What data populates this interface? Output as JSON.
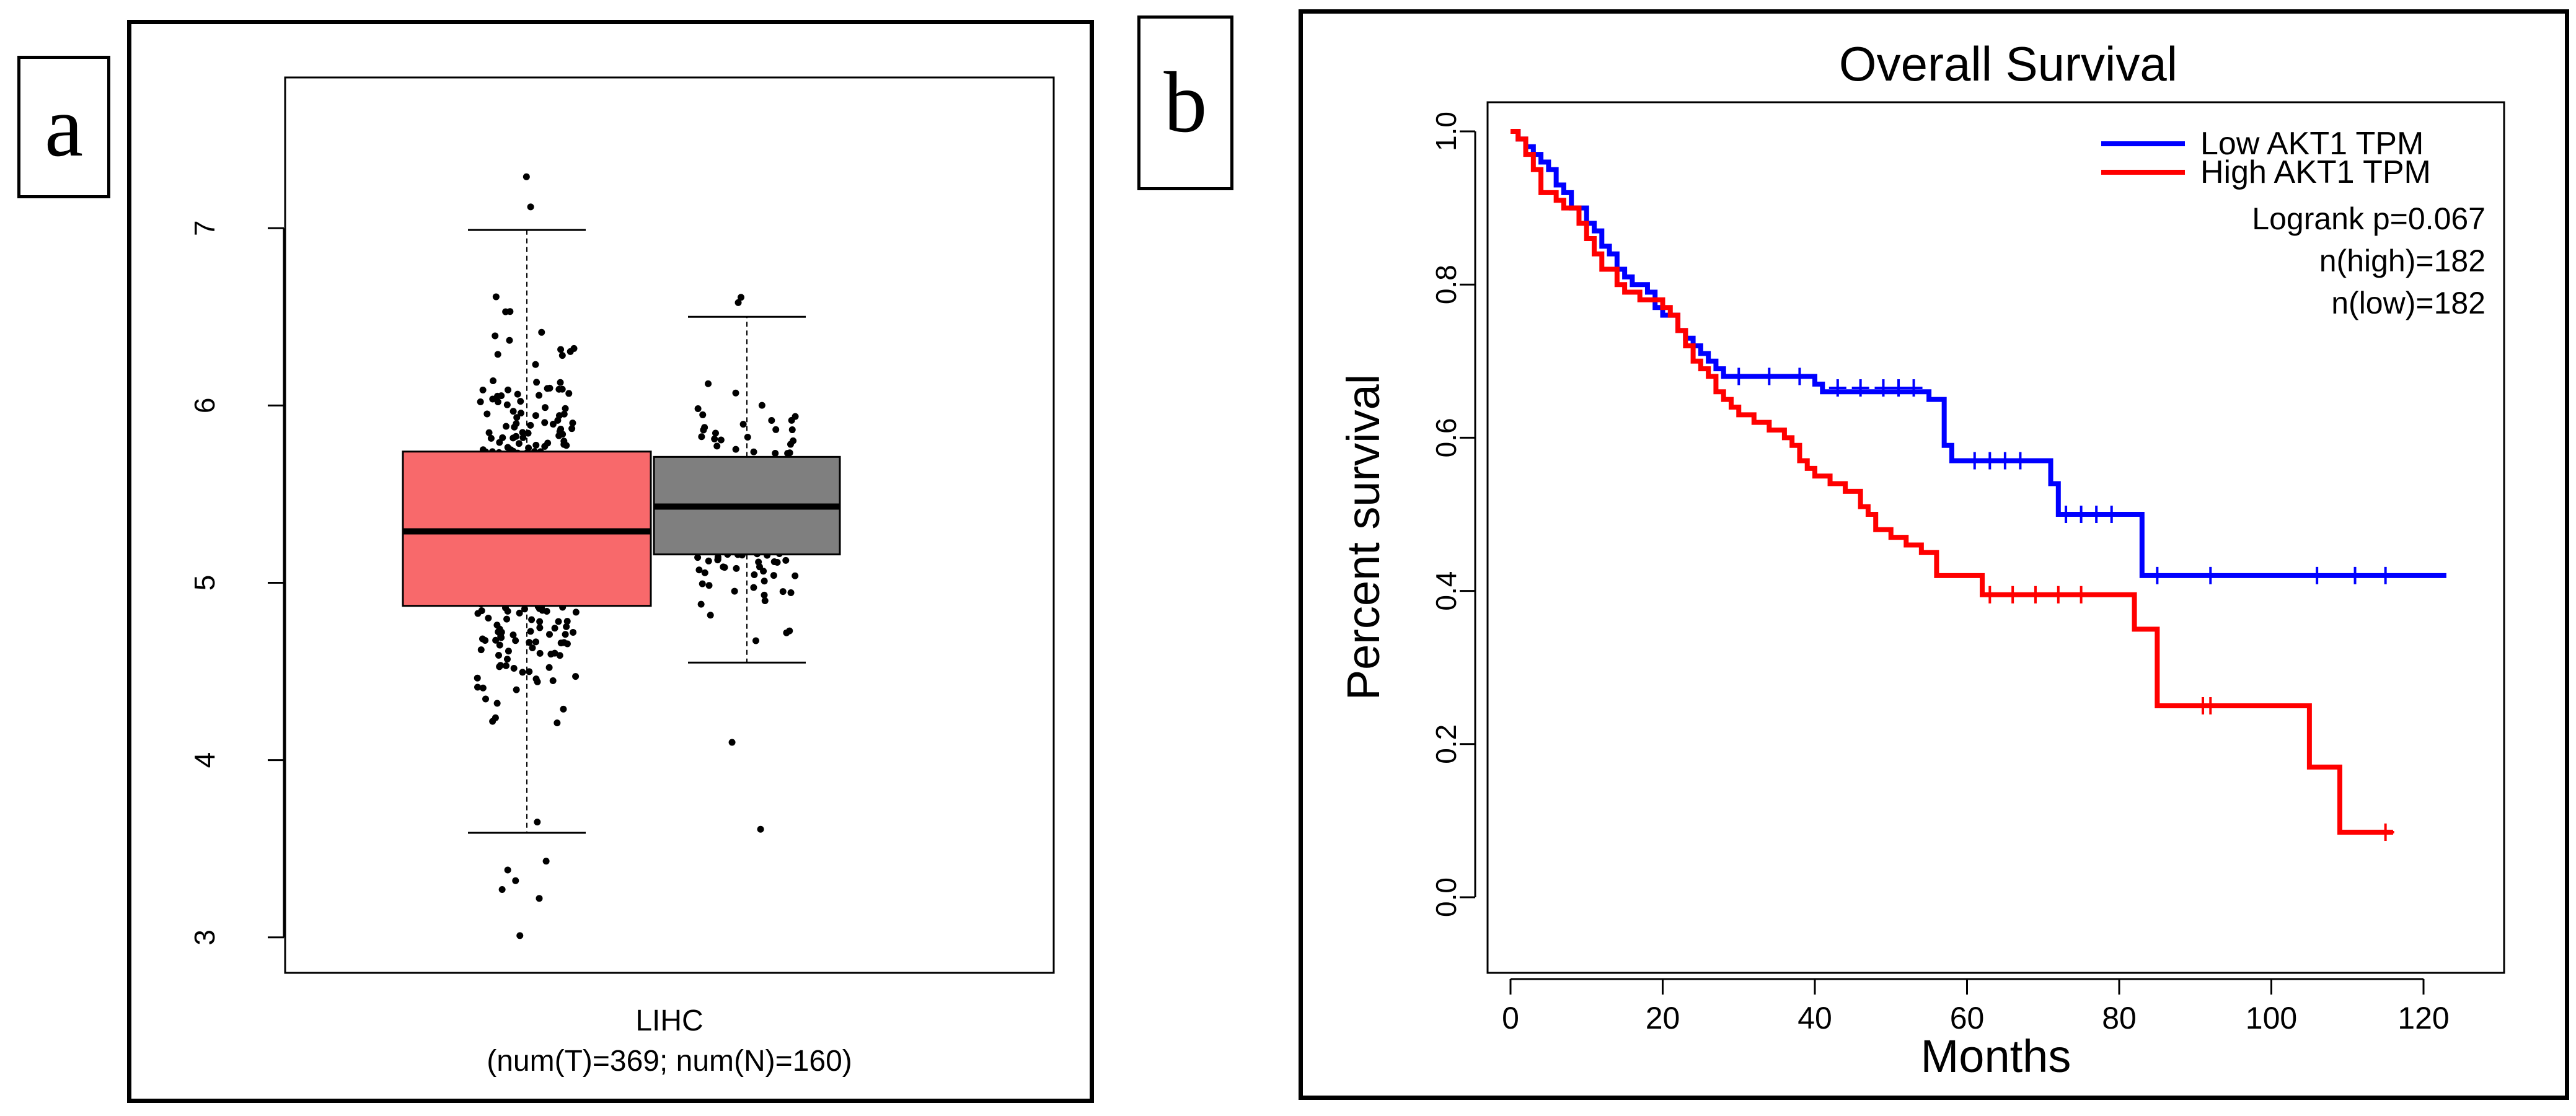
{
  "panels": {
    "a": {
      "letter": "a"
    },
    "b": {
      "letter": "b"
    }
  },
  "colors": {
    "tumor_box": "#f8696b",
    "normal_box": "#7f7f7f",
    "low_line": "#0000ff",
    "high_line": "#ff0000"
  },
  "chart_data": [
    {
      "type": "box",
      "title": "",
      "xlabel": "LIHC",
      "xlabel_sub": "(num(T)=369; num(N)=160)",
      "ylabel": "",
      "ylim": [
        2.8,
        7.85
      ],
      "yticks": [
        3,
        4,
        5,
        6,
        7
      ],
      "series": [
        {
          "name": "T",
          "n": 369,
          "color": "#f8696b",
          "q1": 4.87,
          "median": 5.29,
          "q3": 5.74,
          "whisker_low": 3.59,
          "whisker_high": 6.99,
          "outliers": [
            7.29,
            7.12,
            3.43,
            3.38,
            3.32,
            3.27,
            3.22,
            3.01
          ]
        },
        {
          "name": "N",
          "n": 160,
          "color": "#7f7f7f",
          "q1": 5.16,
          "median": 5.43,
          "q3": 5.71,
          "whisker_low": 4.55,
          "whisker_high": 6.5,
          "outliers": [
            6.61,
            6.58,
            4.1,
            3.61
          ]
        }
      ]
    },
    {
      "type": "line",
      "subtype": "kaplan-meier",
      "title": "Overall Survival",
      "xlabel": "Months",
      "ylabel": "Percent survival",
      "xlim": [
        0,
        125
      ],
      "ylim": [
        0,
        1
      ],
      "xticks": [
        0,
        20,
        40,
        60,
        80,
        100,
        120
      ],
      "yticks": [
        "0.0",
        "0.2",
        "0.4",
        "0.6",
        "0.8",
        "1.0"
      ],
      "legend": {
        "position": "top-right",
        "entries": [
          "Low AKT1 TPM",
          "High AKT1 TPM"
        ],
        "stats": [
          "Logrank p=0.067",
          "n(high)=182",
          "n(low)=182"
        ]
      },
      "series": [
        {
          "name": "Low AKT1 TPM",
          "color": "#0000ff",
          "x": [
            0,
            1,
            2,
            3,
            4,
            5,
            6,
            7,
            8,
            10,
            11,
            12,
            13,
            14,
            15,
            16,
            18,
            19,
            20,
            22,
            23,
            24,
            25,
            26,
            27,
            28,
            40,
            41,
            55,
            57,
            58,
            60,
            71,
            72,
            83,
            123
          ],
          "y": [
            1.0,
            0.99,
            0.98,
            0.97,
            0.96,
            0.95,
            0.93,
            0.92,
            0.9,
            0.88,
            0.87,
            0.85,
            0.84,
            0.82,
            0.81,
            0.8,
            0.79,
            0.77,
            0.76,
            0.74,
            0.73,
            0.72,
            0.71,
            0.7,
            0.69,
            0.68,
            0.67,
            0.66,
            0.65,
            0.59,
            0.57,
            0.57,
            0.54,
            0.5,
            0.42,
            0.42
          ],
          "censors": [
            [
              30,
              0.68
            ],
            [
              34,
              0.68
            ],
            [
              38,
              0.68
            ],
            [
              43,
              0.665
            ],
            [
              46,
              0.665
            ],
            [
              49,
              0.665
            ],
            [
              51,
              0.665
            ],
            [
              53,
              0.665
            ],
            [
              61,
              0.57
            ],
            [
              63,
              0.57
            ],
            [
              65,
              0.57
            ],
            [
              67,
              0.57
            ],
            [
              73,
              0.5
            ],
            [
              75,
              0.5
            ],
            [
              77,
              0.5
            ],
            [
              79,
              0.5
            ],
            [
              85,
              0.42
            ],
            [
              92,
              0.42
            ],
            [
              106,
              0.42
            ],
            [
              111,
              0.42
            ],
            [
              115,
              0.42
            ]
          ]
        },
        {
          "name": "High AKT1 TPM",
          "color": "#ff0000",
          "x": [
            0,
            1,
            2,
            3,
            4,
            6,
            7,
            9,
            10,
            11,
            12,
            14,
            15,
            17,
            20,
            21,
            22,
            23,
            24,
            25,
            26,
            27,
            28,
            29,
            30,
            32,
            34,
            36,
            37,
            38,
            39,
            40,
            42,
            44,
            46,
            47,
            48,
            50,
            52,
            54,
            56,
            62,
            82,
            83,
            85,
            105,
            109,
            116
          ],
          "y": [
            1.0,
            0.99,
            0.97,
            0.95,
            0.92,
            0.91,
            0.9,
            0.88,
            0.86,
            0.84,
            0.82,
            0.8,
            0.79,
            0.78,
            0.77,
            0.76,
            0.74,
            0.72,
            0.7,
            0.69,
            0.68,
            0.66,
            0.65,
            0.64,
            0.63,
            0.62,
            0.61,
            0.6,
            0.59,
            0.57,
            0.56,
            0.55,
            0.54,
            0.53,
            0.51,
            0.5,
            0.48,
            0.47,
            0.46,
            0.45,
            0.42,
            0.395,
            0.35,
            0.35,
            0.25,
            0.17,
            0.085,
            0.085
          ],
          "censors": [
            [
              63,
              0.395
            ],
            [
              66,
              0.395
            ],
            [
              69,
              0.395
            ],
            [
              72,
              0.395
            ],
            [
              75,
              0.395
            ],
            [
              91,
              0.25
            ],
            [
              92,
              0.25
            ],
            [
              115,
              0.085
            ]
          ]
        }
      ]
    }
  ]
}
